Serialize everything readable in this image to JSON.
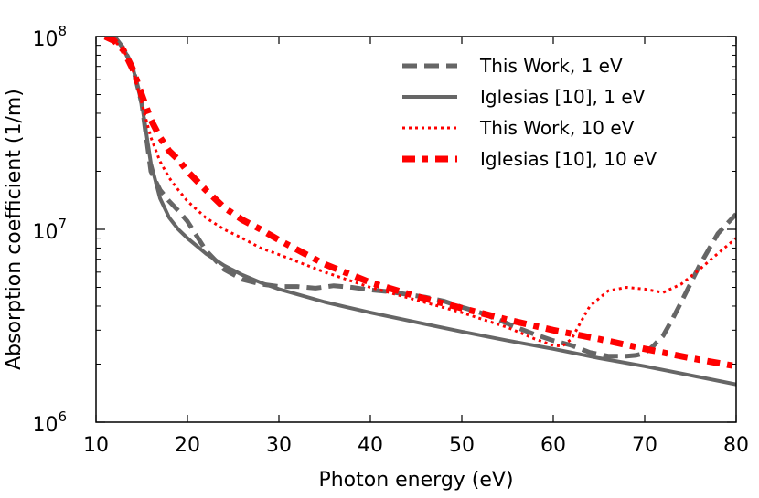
{
  "chart_data": {
    "type": "line",
    "title": "",
    "xlabel": "Photon energy (eV)",
    "ylabel": "Absorption coefficient (1/m)",
    "xlim": [
      10,
      80
    ],
    "ylim": [
      1000000,
      100000000
    ],
    "yscale": "log",
    "grid": false,
    "legend_position": "top-right",
    "x_ticks": [
      {
        "value": 10,
        "label": "10"
      },
      {
        "value": 20,
        "label": "20"
      },
      {
        "value": 30,
        "label": "30"
      },
      {
        "value": 40,
        "label": "40"
      },
      {
        "value": 50,
        "label": "50"
      },
      {
        "value": 60,
        "label": "60"
      },
      {
        "value": 70,
        "label": "70"
      },
      {
        "value": 80,
        "label": "80"
      }
    ],
    "y_ticks": [
      {
        "value": 1000000,
        "base": "10",
        "exp": "6"
      },
      {
        "value": 10000000,
        "base": "10",
        "exp": "7"
      },
      {
        "value": 100000000,
        "base": "10",
        "exp": "8"
      }
    ],
    "series": [
      {
        "name": "This Work, 1 eV",
        "color": "#666666",
        "style": "dashed",
        "x": [
          12,
          13,
          14,
          15,
          16,
          17,
          18,
          19,
          20,
          22,
          24,
          26,
          28,
          30,
          32,
          34,
          36,
          38,
          40,
          42,
          44,
          46,
          48,
          50,
          52,
          54,
          56,
          58,
          60,
          62,
          64,
          66,
          68,
          69,
          70,
          71,
          72,
          73,
          74,
          76,
          78,
          80
        ],
        "y": [
          100000000,
          87000000,
          70000000,
          45000000,
          20000000,
          16000000,
          14000000,
          12500000,
          11000000,
          7800000,
          6200000,
          5500000,
          5200000,
          5050000,
          5050000,
          4950000,
          5100000,
          5000000,
          4850000,
          4750000,
          4600000,
          4450000,
          4250000,
          3950000,
          3700000,
          3400000,
          3100000,
          2850000,
          2650000,
          2500000,
          2300000,
          2200000,
          2200000,
          2220000,
          2280000,
          2500000,
          2800000,
          3400000,
          4200000,
          6500000,
          9500000,
          12000000
        ]
      },
      {
        "name": "Iglesias [10], 1 eV",
        "color": "#666666",
        "style": "solid",
        "x": [
          12,
          13,
          14,
          15,
          16,
          17,
          18,
          19,
          20,
          22,
          24,
          26,
          28,
          30,
          35,
          40,
          45,
          50,
          55,
          60,
          65,
          70,
          75,
          80
        ],
        "y": [
          100000000,
          87000000,
          70000000,
          45000000,
          22000000,
          14500000,
          11500000,
          10000000,
          9000000,
          7500000,
          6500000,
          5800000,
          5300000,
          4900000,
          4200000,
          3700000,
          3300000,
          2950000,
          2650000,
          2400000,
          2150000,
          1950000,
          1750000,
          1570000
        ]
      },
      {
        "name": "This Work, 10 eV",
        "color": "#ff0000",
        "style": "dotted",
        "x": [
          11,
          12,
          13,
          14,
          15,
          16,
          17,
          18,
          19,
          20,
          22,
          24,
          26,
          28,
          30,
          35,
          40,
          45,
          50,
          55,
          58,
          60,
          61,
          62,
          63,
          64,
          66,
          68,
          70,
          72,
          74,
          76,
          78,
          80
        ],
        "y": [
          100000000,
          95000000,
          85000000,
          68000000,
          45000000,
          30000000,
          22500000,
          18500000,
          16000000,
          14000000,
          11500000,
          10000000,
          9000000,
          8000000,
          7400000,
          6000000,
          5000000,
          4300000,
          3700000,
          3100000,
          2700000,
          2500000,
          2480000,
          2700000,
          3300000,
          4000000,
          4800000,
          5000000,
          4900000,
          4700000,
          5200000,
          6200000,
          7500000,
          9000000
        ]
      },
      {
        "name": "Iglesias [10], 10 eV",
        "color": "#ff0000",
        "style": "dashdot",
        "x": [
          11,
          12,
          13,
          14,
          15,
          16,
          17,
          18,
          19,
          20,
          22,
          24,
          26,
          28,
          30,
          35,
          40,
          45,
          50,
          55,
          60,
          65,
          70,
          75,
          80
        ],
        "y": [
          100000000,
          95000000,
          85000000,
          68000000,
          50000000,
          37000000,
          30000000,
          25500000,
          23000000,
          20000000,
          16000000,
          13000000,
          11200000,
          10000000,
          8800000,
          6600000,
          5300000,
          4500000,
          3900000,
          3400000,
          3000000,
          2700000,
          2400000,
          2150000,
          1950000
        ]
      }
    ]
  }
}
